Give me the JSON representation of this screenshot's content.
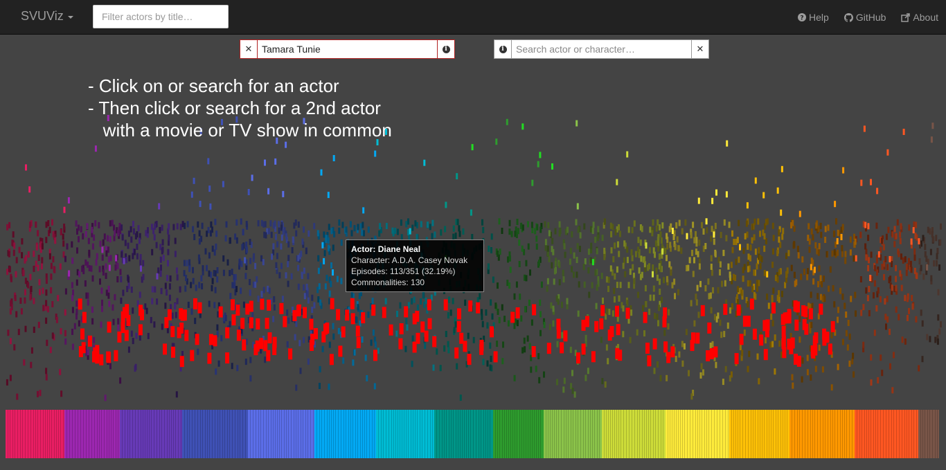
{
  "navbar": {
    "brand": "SVUViz",
    "filter_placeholder": "Filter actors by title…",
    "links": [
      {
        "label": "Help",
        "icon": "question-circle-icon"
      },
      {
        "label": "GitHub",
        "icon": "github-icon"
      },
      {
        "label": "About",
        "icon": "external-link-icon"
      }
    ]
  },
  "search": {
    "first_actor_value": "Tamara Tunie",
    "second_actor_placeholder": "Search actor or character…",
    "clear_glyph": "✕"
  },
  "instructions": {
    "line1": "- Click on or search for an actor",
    "line2": "- Then click or search for a 2nd actor",
    "line3": "   with a movie or TV show in common"
  },
  "tooltip": {
    "actor_label": "Actor:",
    "actor_name": "Diane Neal",
    "character": "Character: A.D.A. Casey Novak",
    "episodes": "Episodes: 113/351 (32.19%)",
    "commonalities": "Commonalities: 130"
  },
  "colors": {
    "navbar_bg": "#222222",
    "page_bg": "#444444",
    "selected_border": "#b22222",
    "highlight": "#ff0000",
    "palette": [
      "#e91e63",
      "#9c27b0",
      "#673ab7",
      "#3f51b5",
      "#5b6ee8",
      "#03a9f4",
      "#00bcd4",
      "#009688",
      "#2e9c2e",
      "#8bc34a",
      "#cddc39",
      "#ffeb3b",
      "#ffc107",
      "#ff9800",
      "#ff5722",
      "#795548"
    ]
  }
}
